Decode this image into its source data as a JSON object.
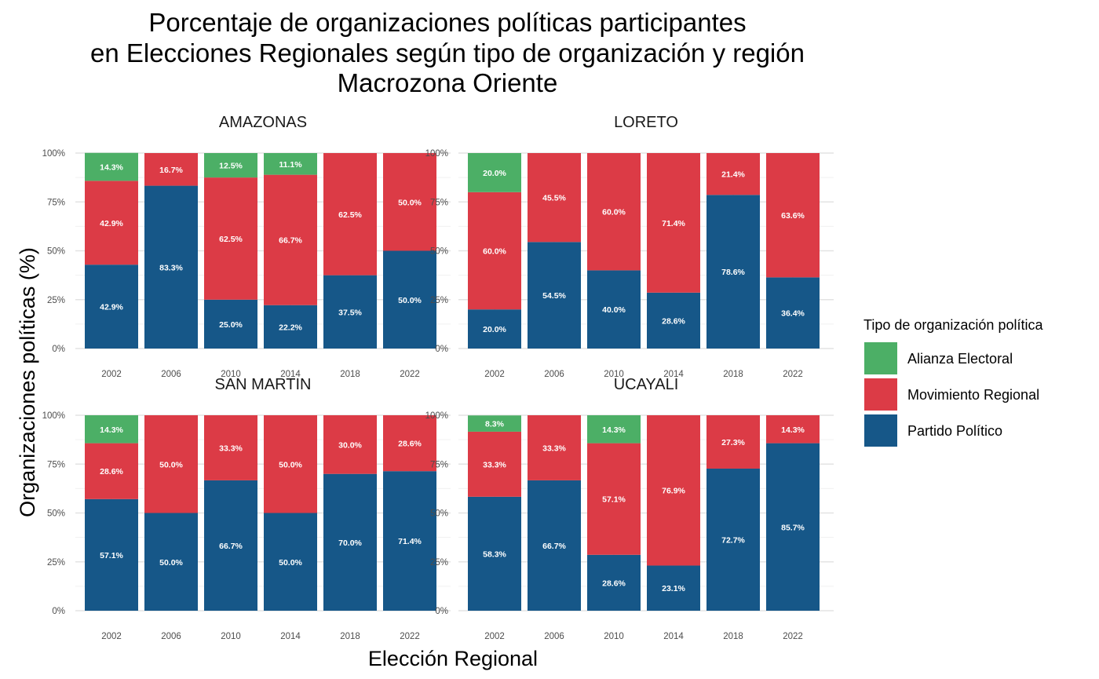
{
  "title_lines": [
    "Porcentaje de organizaciones políticas participantes",
    "en Elecciones Regionales según tipo de organización y región",
    "Macrozona Oriente"
  ],
  "xlabel": "Elección Regional",
  "ylabel": "Organizaciones políticas (%)",
  "legend": {
    "title": "Tipo de organización política",
    "items": [
      {
        "name": "Alianza Electoral",
        "color": "#4caf66"
      },
      {
        "name": "Movimiento Regional",
        "color": "#dc3b46"
      },
      {
        "name": "Partido Político",
        "color": "#165788"
      }
    ]
  },
  "chart_data": {
    "type": "bar",
    "stacked": true,
    "facets": [
      "AMAZONAS",
      "LORETO",
      "SAN MARTIN",
      "UCAYALI"
    ],
    "categories": [
      "2002",
      "2006",
      "2010",
      "2014",
      "2018",
      "2022"
    ],
    "y_ticks": [
      "0%",
      "25%",
      "50%",
      "75%",
      "100%"
    ],
    "ylim": [
      0,
      100
    ],
    "grid": true,
    "legend_position": "right",
    "panels": [
      {
        "name": "AMAZONAS",
        "series": [
          {
            "name": "Partido Político",
            "values": [
              42.9,
              83.3,
              25.0,
              22.2,
              37.5,
              50.0
            ],
            "labels": [
              "42.9%",
              "83.3%",
              "25.0%",
              "22.2%",
              "37.5%",
              "50.0%"
            ]
          },
          {
            "name": "Movimiento Regional",
            "values": [
              42.9,
              16.7,
              62.5,
              66.7,
              62.5,
              50.0
            ],
            "labels": [
              "42.9%",
              "16.7%",
              "62.5%",
              "66.7%",
              "62.5%",
              "50.0%"
            ]
          },
          {
            "name": "Alianza Electoral",
            "values": [
              14.3,
              0,
              12.5,
              11.1,
              0,
              0
            ],
            "labels": [
              "14.3%",
              "",
              "12.5%",
              "11.1%",
              "",
              ""
            ]
          }
        ]
      },
      {
        "name": "LORETO",
        "series": [
          {
            "name": "Partido Político",
            "values": [
              20.0,
              54.5,
              40.0,
              28.6,
              78.6,
              36.4
            ],
            "labels": [
              "20.0%",
              "54.5%",
              "40.0%",
              "28.6%",
              "78.6%",
              "36.4%"
            ]
          },
          {
            "name": "Movimiento Regional",
            "values": [
              60.0,
              45.5,
              60.0,
              71.4,
              21.4,
              63.6
            ],
            "labels": [
              "60.0%",
              "45.5%",
              "60.0%",
              "71.4%",
              "21.4%",
              "63.6%"
            ]
          },
          {
            "name": "Alianza Electoral",
            "values": [
              20.0,
              0,
              0,
              0,
              0,
              0
            ],
            "labels": [
              "20.0%",
              "",
              "",
              "",
              "",
              ""
            ]
          }
        ]
      },
      {
        "name": "SAN MARTIN",
        "series": [
          {
            "name": "Partido Político",
            "values": [
              57.1,
              50.0,
              66.7,
              50.0,
              70.0,
              71.4
            ],
            "labels": [
              "57.1%",
              "50.0%",
              "66.7%",
              "50.0%",
              "70.0%",
              "71.4%"
            ]
          },
          {
            "name": "Movimiento Regional",
            "values": [
              28.6,
              50.0,
              33.3,
              50.0,
              30.0,
              28.6
            ],
            "labels": [
              "28.6%",
              "50.0%",
              "33.3%",
              "50.0%",
              "30.0%",
              "28.6%"
            ]
          },
          {
            "name": "Alianza Electoral",
            "values": [
              14.3,
              0,
              0,
              0,
              0,
              0
            ],
            "labels": [
              "14.3%",
              "",
              "",
              "",
              "",
              ""
            ]
          }
        ]
      },
      {
        "name": "UCAYALI",
        "series": [
          {
            "name": "Partido Político",
            "values": [
              58.3,
              66.7,
              28.6,
              23.1,
              72.7,
              85.7
            ],
            "labels": [
              "58.3%",
              "66.7%",
              "28.6%",
              "23.1%",
              "72.7%",
              "85.7%"
            ]
          },
          {
            "name": "Movimiento Regional",
            "values": [
              33.3,
              33.3,
              57.1,
              76.9,
              27.3,
              14.3
            ],
            "labels": [
              "33.3%",
              "33.3%",
              "57.1%",
              "76.9%",
              "27.3%",
              "14.3%"
            ]
          },
          {
            "name": "Alianza Electoral",
            "values": [
              8.3,
              0,
              14.3,
              0,
              0,
              0
            ],
            "labels": [
              "8.3%",
              "",
              "14.3%",
              "",
              "",
              ""
            ]
          }
        ]
      }
    ]
  }
}
